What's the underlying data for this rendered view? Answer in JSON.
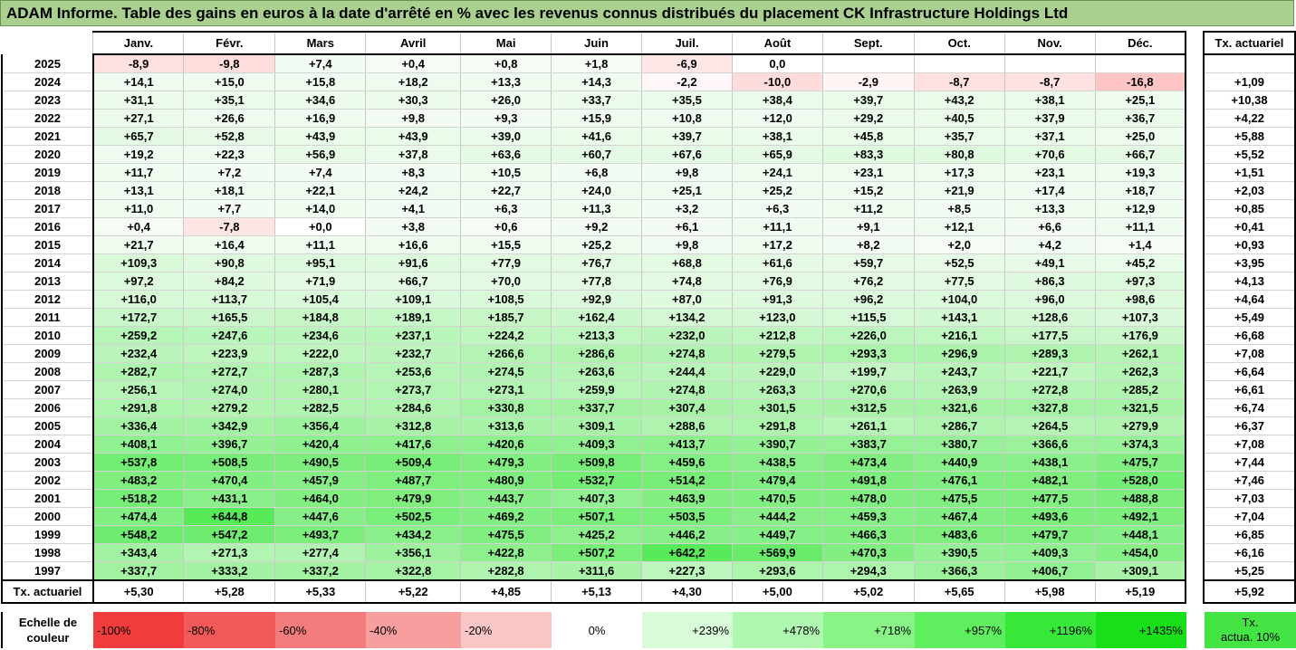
{
  "title": "ADAM Informe. Table des gains en euros à la date d'arrêté en % avec les revenus connus distribués du placement CK Infrastructure Holdings Ltd",
  "months": [
    "Janv.",
    "Févr.",
    "Mars",
    "Avril",
    "Mai",
    "Juin",
    "Juil.",
    "Août",
    "Sept.",
    "Oct.",
    "Nov.",
    "Déc."
  ],
  "rate_header": "Tx. actuariel",
  "rows": [
    {
      "year": "2025",
      "values": [
        "-8,9",
        "-9,8",
        "+7,4",
        "+0,4",
        "+0,8",
        "+1,8",
        "-6,9",
        "0,0",
        "",
        "",
        "",
        ""
      ],
      "rate": ""
    },
    {
      "year": "2024",
      "values": [
        "+14,1",
        "+15,0",
        "+15,8",
        "+18,2",
        "+13,3",
        "+14,3",
        "-2,2",
        "-10,0",
        "-2,9",
        "-8,7",
        "-8,7",
        "-16,8"
      ],
      "rate": "+1,09"
    },
    {
      "year": "2023",
      "values": [
        "+31,1",
        "+35,1",
        "+34,6",
        "+30,3",
        "+26,0",
        "+33,7",
        "+35,5",
        "+38,4",
        "+39,7",
        "+43,2",
        "+38,1",
        "+25,1"
      ],
      "rate": "+10,38"
    },
    {
      "year": "2022",
      "values": [
        "+27,1",
        "+26,6",
        "+16,9",
        "+9,8",
        "+9,3",
        "+15,9",
        "+10,8",
        "+12,0",
        "+29,2",
        "+40,5",
        "+37,9",
        "+36,7"
      ],
      "rate": "+4,22"
    },
    {
      "year": "2021",
      "values": [
        "+65,7",
        "+52,8",
        "+43,9",
        "+43,9",
        "+39,0",
        "+41,6",
        "+39,7",
        "+38,1",
        "+45,8",
        "+35,7",
        "+37,1",
        "+25,0"
      ],
      "rate": "+5,88"
    },
    {
      "year": "2020",
      "values": [
        "+19,2",
        "+22,3",
        "+56,9",
        "+37,8",
        "+63,6",
        "+60,7",
        "+67,6",
        "+65,9",
        "+83,3",
        "+80,8",
        "+70,6",
        "+66,7"
      ],
      "rate": "+5,52"
    },
    {
      "year": "2019",
      "values": [
        "+11,7",
        "+7,2",
        "+7,4",
        "+8,3",
        "+10,5",
        "+6,8",
        "+9,8",
        "+24,1",
        "+23,1",
        "+17,3",
        "+23,1",
        "+19,3"
      ],
      "rate": "+1,51"
    },
    {
      "year": "2018",
      "values": [
        "+13,1",
        "+18,1",
        "+22,1",
        "+24,2",
        "+22,7",
        "+24,0",
        "+25,1",
        "+25,2",
        "+15,2",
        "+21,9",
        "+17,4",
        "+18,7"
      ],
      "rate": "+2,03"
    },
    {
      "year": "2017",
      "values": [
        "+11,0",
        "+7,7",
        "+14,0",
        "+4,1",
        "+6,3",
        "+11,3",
        "+3,2",
        "+6,3",
        "+11,2",
        "+8,5",
        "+13,3",
        "+12,9"
      ],
      "rate": "+0,85"
    },
    {
      "year": "2016",
      "values": [
        "+0,4",
        "-7,8",
        "+0,0",
        "+3,8",
        "+0,6",
        "+9,2",
        "+6,1",
        "+11,1",
        "+9,1",
        "+12,1",
        "+6,6",
        "+11,1"
      ],
      "rate": "+0,41"
    },
    {
      "year": "2015",
      "values": [
        "+21,7",
        "+16,4",
        "+11,1",
        "+16,6",
        "+15,5",
        "+25,2",
        "+9,8",
        "+17,2",
        "+8,2",
        "+2,0",
        "+4,2",
        "+1,4"
      ],
      "rate": "+0,93"
    },
    {
      "year": "2014",
      "values": [
        "+109,3",
        "+90,8",
        "+95,1",
        "+91,6",
        "+77,9",
        "+76,7",
        "+68,8",
        "+61,6",
        "+59,7",
        "+52,5",
        "+49,1",
        "+45,2"
      ],
      "rate": "+3,95"
    },
    {
      "year": "2013",
      "values": [
        "+97,2",
        "+84,2",
        "+71,9",
        "+66,7",
        "+70,0",
        "+77,8",
        "+74,8",
        "+76,9",
        "+76,2",
        "+77,5",
        "+86,3",
        "+97,3"
      ],
      "rate": "+4,13"
    },
    {
      "year": "2012",
      "values": [
        "+116,0",
        "+113,7",
        "+105,4",
        "+109,1",
        "+108,5",
        "+92,9",
        "+87,0",
        "+91,3",
        "+96,2",
        "+104,0",
        "+96,0",
        "+98,6"
      ],
      "rate": "+4,64"
    },
    {
      "year": "2011",
      "values": [
        "+172,7",
        "+165,5",
        "+184,8",
        "+189,1",
        "+185,7",
        "+162,4",
        "+134,2",
        "+123,0",
        "+115,5",
        "+143,1",
        "+128,6",
        "+107,3"
      ],
      "rate": "+5,49"
    },
    {
      "year": "2010",
      "values": [
        "+259,2",
        "+247,6",
        "+234,6",
        "+237,1",
        "+224,2",
        "+213,3",
        "+232,0",
        "+212,8",
        "+226,0",
        "+216,1",
        "+177,5",
        "+176,9"
      ],
      "rate": "+6,68"
    },
    {
      "year": "2009",
      "values": [
        "+232,4",
        "+223,9",
        "+222,0",
        "+232,7",
        "+266,6",
        "+286,6",
        "+274,8",
        "+279,5",
        "+293,3",
        "+296,9",
        "+289,3",
        "+262,1"
      ],
      "rate": "+7,08"
    },
    {
      "year": "2008",
      "values": [
        "+282,7",
        "+272,7",
        "+287,3",
        "+253,6",
        "+274,5",
        "+263,6",
        "+244,4",
        "+229,0",
        "+199,7",
        "+243,7",
        "+221,7",
        "+262,3"
      ],
      "rate": "+6,64"
    },
    {
      "year": "2007",
      "values": [
        "+256,1",
        "+274,0",
        "+280,1",
        "+273,7",
        "+273,1",
        "+259,9",
        "+274,8",
        "+263,3",
        "+270,6",
        "+263,9",
        "+272,8",
        "+285,2"
      ],
      "rate": "+6,61"
    },
    {
      "year": "2006",
      "values": [
        "+291,8",
        "+279,2",
        "+282,5",
        "+284,6",
        "+330,8",
        "+337,7",
        "+307,4",
        "+301,5",
        "+312,5",
        "+321,6",
        "+327,8",
        "+321,5"
      ],
      "rate": "+6,74"
    },
    {
      "year": "2005",
      "values": [
        "+336,4",
        "+342,9",
        "+356,4",
        "+312,8",
        "+313,6",
        "+309,1",
        "+288,6",
        "+291,8",
        "+261,1",
        "+286,7",
        "+264,5",
        "+279,9"
      ],
      "rate": "+6,37"
    },
    {
      "year": "2004",
      "values": [
        "+408,1",
        "+396,7",
        "+420,4",
        "+417,6",
        "+420,6",
        "+409,3",
        "+413,7",
        "+390,7",
        "+383,7",
        "+380,7",
        "+366,6",
        "+374,3"
      ],
      "rate": "+7,08"
    },
    {
      "year": "2003",
      "values": [
        "+537,8",
        "+508,5",
        "+490,5",
        "+509,4",
        "+479,3",
        "+509,8",
        "+459,6",
        "+438,5",
        "+473,4",
        "+440,9",
        "+438,1",
        "+475,7"
      ],
      "rate": "+7,44"
    },
    {
      "year": "2002",
      "values": [
        "+483,2",
        "+470,4",
        "+457,9",
        "+487,7",
        "+480,9",
        "+532,7",
        "+514,2",
        "+479,4",
        "+491,8",
        "+476,1",
        "+482,1",
        "+528,0"
      ],
      "rate": "+7,46"
    },
    {
      "year": "2001",
      "values": [
        "+518,2",
        "+431,1",
        "+464,0",
        "+479,9",
        "+443,7",
        "+407,3",
        "+463,9",
        "+470,5",
        "+478,0",
        "+475,5",
        "+477,5",
        "+488,8"
      ],
      "rate": "+7,03"
    },
    {
      "year": "2000",
      "values": [
        "+474,4",
        "+644,8",
        "+447,6",
        "+502,5",
        "+469,2",
        "+507,1",
        "+503,5",
        "+444,2",
        "+459,3",
        "+467,4",
        "+493,6",
        "+492,1"
      ],
      "rate": "+7,04"
    },
    {
      "year": "1999",
      "values": [
        "+548,2",
        "+547,2",
        "+493,7",
        "+434,2",
        "+475,5",
        "+425,2",
        "+446,2",
        "+449,7",
        "+466,3",
        "+483,6",
        "+479,7",
        "+448,1"
      ],
      "rate": "+6,85"
    },
    {
      "year": "1998",
      "values": [
        "+343,4",
        "+271,3",
        "+277,4",
        "+356,1",
        "+422,8",
        "+507,2",
        "+642,2",
        "+569,9",
        "+470,3",
        "+390,5",
        "+409,3",
        "+454,0"
      ],
      "rate": "+6,16"
    },
    {
      "year": "1997",
      "values": [
        "+337,7",
        "+333,2",
        "+337,2",
        "+322,8",
        "+282,8",
        "+311,6",
        "+227,3",
        "+293,6",
        "+294,3",
        "+366,3",
        "+406,7",
        "+309,1"
      ],
      "rate": "+5,25"
    }
  ],
  "footer": {
    "label": "Tx. actuariel",
    "values": [
      "+5,30",
      "+5,28",
      "+5,33",
      "+5,22",
      "+4,85",
      "+5,13",
      "+4,30",
      "+5,00",
      "+5,02",
      "+5,65",
      "+5,98",
      "+5,19"
    ],
    "rate": "+5,92"
  },
  "legend": {
    "label_line1": "Echelle de",
    "label_line2": "couleur",
    "items": [
      {
        "text": "-100%",
        "color": "#f03c3c",
        "align": "left"
      },
      {
        "text": "-80%",
        "color": "#f25a5a",
        "align": "left"
      },
      {
        "text": "-60%",
        "color": "#f47c7c",
        "align": "left"
      },
      {
        "text": "-40%",
        "color": "#f79e9e",
        "align": "left"
      },
      {
        "text": "-20%",
        "color": "#fbc6c6",
        "align": "left"
      },
      {
        "text": "0%",
        "color": "#ffffff",
        "align": "center"
      },
      {
        "text": "+239%",
        "color": "#d8fcd8",
        "align": "right"
      },
      {
        "text": "+478%",
        "color": "#b0f8b0",
        "align": "right"
      },
      {
        "text": "+718%",
        "color": "#88f488",
        "align": "right"
      },
      {
        "text": "+957%",
        "color": "#5eee5e",
        "align": "right"
      },
      {
        "text": "+1196%",
        "color": "#38e838",
        "align": "right"
      },
      {
        "text": "+1435%",
        "color": "#18e018",
        "align": "right"
      }
    ],
    "tx_line1": "Tx.",
    "tx_line2": "actua. 10%",
    "tx_color": "#44e444"
  }
}
